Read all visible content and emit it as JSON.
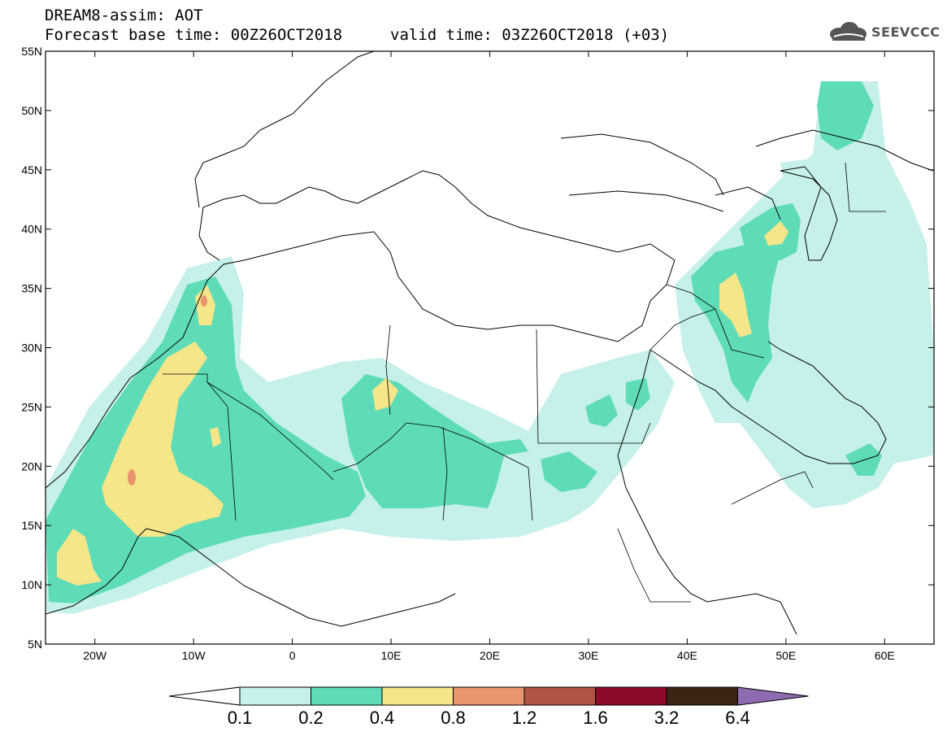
{
  "header": {
    "title_line1": "DREAM8-assim: AOT",
    "base_time": "Forecast base time: 00Z26OCT2018",
    "valid_time": "valid time: 03Z26OCT2018 (+03)",
    "logo_text": "SEEVCCC",
    "logo_icon": "cloud-logo-icon"
  },
  "map": {
    "lat_labels": [
      "55N",
      "50N",
      "45N",
      "40N",
      "35N",
      "30N",
      "25N",
      "20N",
      "15N",
      "10N",
      "5N"
    ],
    "lon_labels": [
      "20W",
      "10W",
      "0",
      "10E",
      "20E",
      "30E",
      "40E",
      "50E",
      "60E"
    ],
    "lat_range": [
      5,
      55
    ],
    "lon_range": [
      -25,
      65
    ]
  },
  "colorbar": {
    "labels": [
      "0.1",
      "0.2",
      "0.4",
      "0.8",
      "1.2",
      "1.6",
      "3.2",
      "6.4"
    ],
    "colors": [
      "#c6f0ea",
      "#5edcb8",
      "#f5e68a",
      "#e9956e",
      "#b05545",
      "#8b0a2a",
      "#3b2515",
      "#8e6bb0"
    ]
  }
}
